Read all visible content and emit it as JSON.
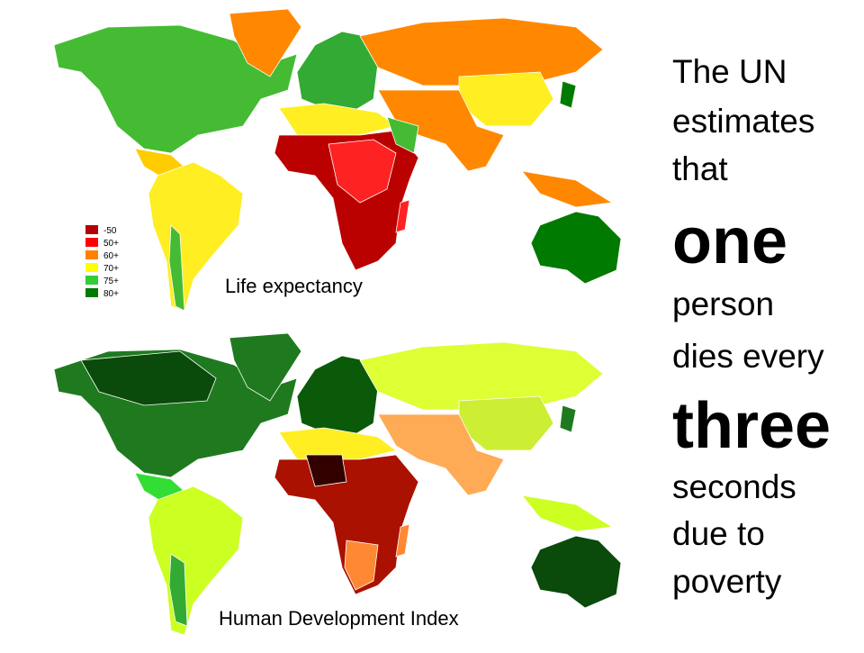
{
  "maps": [
    {
      "caption": "Life expectancy",
      "legend": [
        {
          "label": "-50",
          "color": "#b30000"
        },
        {
          "label": "50+",
          "color": "#ff0000"
        },
        {
          "label": "60+",
          "color": "#ff8000"
        },
        {
          "label": "70+",
          "color": "#ffff00"
        },
        {
          "label": "75+",
          "color": "#33cc33"
        },
        {
          "label": "80+",
          "color": "#007a00"
        }
      ]
    },
    {
      "caption": "Human Development Index"
    }
  ],
  "text": {
    "lines": [
      "The UN",
      "estimates",
      "that",
      "one",
      "person",
      "dies every",
      "three",
      "seconds",
      "due to",
      "poverty"
    ]
  }
}
